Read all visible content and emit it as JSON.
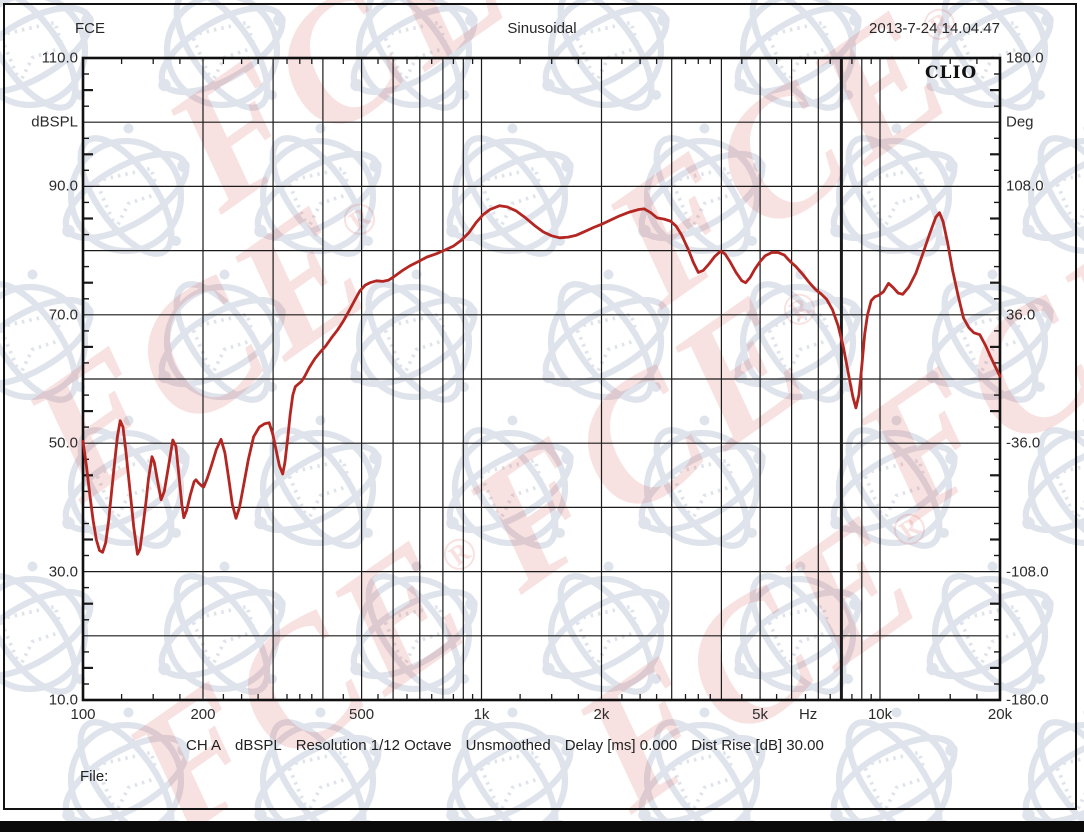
{
  "header": {
    "left": "FCE",
    "center": "Sinusoidal",
    "right": "2013-7-24 14.04.47"
  },
  "branding": {
    "plot_logo": "CLIO",
    "watermark_text": "FCE",
    "watermark_reg": "®"
  },
  "axes": {
    "y_left": {
      "unit": "dBSPL",
      "unit_value": 100,
      "min": 10,
      "max": 110,
      "grid_step": 10,
      "labels": [
        {
          "v": 110,
          "label": "110.0"
        },
        {
          "v": 90,
          "label": "90.0"
        },
        {
          "v": 70,
          "label": "70.0"
        },
        {
          "v": 50,
          "label": "50.0"
        },
        {
          "v": 30,
          "label": "30.0"
        },
        {
          "v": 10,
          "label": "10.0"
        }
      ]
    },
    "y_right": {
      "unit": "Deg",
      "unit_value": 144,
      "min": -180,
      "max": 180,
      "labels": [
        {
          "v": 180,
          "label": "180.0"
        },
        {
          "v": 108,
          "label": "108.0"
        },
        {
          "v": 36,
          "label": "36.0"
        },
        {
          "v": -36,
          "label": "-36.0"
        },
        {
          "v": -108,
          "label": "-108.0"
        },
        {
          "v": -180,
          "label": "-180.0"
        }
      ]
    },
    "x": {
      "unit": "Hz",
      "unit_freq": 6600,
      "min": 100,
      "max": 20000,
      "scale": "log",
      "labels": [
        {
          "f": 100,
          "label": "100"
        },
        {
          "f": 200,
          "label": "200"
        },
        {
          "f": 500,
          "label": "500"
        },
        {
          "f": 1000,
          "label": "1k"
        },
        {
          "f": 2000,
          "label": "2k"
        },
        {
          "f": 5000,
          "label": "5k"
        },
        {
          "f": 10000,
          "label": "10k"
        },
        {
          "f": 20000,
          "label": "20k"
        }
      ]
    }
  },
  "status_bar": {
    "items": [
      "CH A",
      "dBSPL",
      "Resolution 1/12 Octave",
      "Unsmoothed",
      "Delay [ms] 0.000",
      "Dist Rise [dB] 30.00"
    ]
  },
  "file_label": "File:",
  "colors": {
    "curve": "#b32622",
    "grid": "#1a1a1a",
    "watermark_red": "#ce3e34",
    "watermark_gray": "#dfe3eb"
  },
  "chart_data": {
    "type": "line",
    "title": "Sinusoidal",
    "xlabel": "Hz",
    "ylabel": "dBSPL",
    "y2label": "Deg",
    "xlim": [
      100,
      20000
    ],
    "ylim": [
      10,
      110
    ],
    "y2lim": [
      -180,
      180
    ],
    "x_scale": "log",
    "grid": true,
    "legend": "none",
    "series": [
      {
        "name": "CH A dBSPL",
        "color": "#b32622",
        "points": [
          [
            100,
            50.3
          ],
          [
            102,
            46.5
          ],
          [
            104,
            42
          ],
          [
            106,
            38
          ],
          [
            108,
            35
          ],
          [
            110,
            33.3
          ],
          [
            112,
            33.0
          ],
          [
            114,
            34.5
          ],
          [
            116,
            38
          ],
          [
            118,
            42.5
          ],
          [
            120,
            47
          ],
          [
            122,
            51
          ],
          [
            124,
            53.5
          ],
          [
            126,
            52.5
          ],
          [
            128,
            49
          ],
          [
            130,
            45
          ],
          [
            132,
            41
          ],
          [
            134,
            37
          ],
          [
            137,
            32.7
          ],
          [
            139,
            33.5
          ],
          [
            141,
            36.5
          ],
          [
            144,
            41
          ],
          [
            146,
            44.5
          ],
          [
            149,
            47.9
          ],
          [
            151,
            47
          ],
          [
            154,
            44
          ],
          [
            157,
            41.2
          ],
          [
            160,
            42.5
          ],
          [
            164,
            46.5
          ],
          [
            168,
            50.5
          ],
          [
            171,
            49.5
          ],
          [
            174,
            45
          ],
          [
            177,
            40.5
          ],
          [
            179,
            38.4
          ],
          [
            182,
            39.5
          ],
          [
            186,
            42
          ],
          [
            190,
            44
          ],
          [
            192,
            44.3
          ],
          [
            195,
            43.8
          ],
          [
            199,
            43.3
          ],
          [
            201,
            43.2
          ],
          [
            205,
            44.5
          ],
          [
            210,
            46.5
          ],
          [
            216,
            49
          ],
          [
            222,
            50.6
          ],
          [
            227,
            48.5
          ],
          [
            232,
            44.5
          ],
          [
            237,
            40.5
          ],
          [
            242,
            38.3
          ],
          [
            247,
            40
          ],
          [
            253,
            43.5
          ],
          [
            260,
            47.5
          ],
          [
            268,
            51
          ],
          [
            277,
            52.5
          ],
          [
            285,
            53.0
          ],
          [
            293,
            53.2
          ],
          [
            299,
            51.5
          ],
          [
            305,
            49
          ],
          [
            311,
            46.5
          ],
          [
            317,
            45.2
          ],
          [
            321,
            47
          ],
          [
            326,
            50.5
          ],
          [
            331,
            54.5
          ],
          [
            336,
            57.5
          ],
          [
            341,
            58.8
          ],
          [
            347,
            59.2
          ],
          [
            353,
            59.6
          ],
          [
            360,
            60.4
          ],
          [
            370,
            61.8
          ],
          [
            382,
            63.2
          ],
          [
            394,
            64.2
          ],
          [
            406,
            65.1
          ],
          [
            420,
            66.4
          ],
          [
            435,
            67.6
          ],
          [
            450,
            69
          ],
          [
            465,
            70.6
          ],
          [
            480,
            72.2
          ],
          [
            495,
            73.7
          ],
          [
            510,
            74.6
          ],
          [
            525,
            75.0
          ],
          [
            545,
            75.3
          ],
          [
            565,
            75.2
          ],
          [
            585,
            75.4
          ],
          [
            605,
            76.0
          ],
          [
            630,
            76.8
          ],
          [
            660,
            77.6
          ],
          [
            695,
            78.3
          ],
          [
            730,
            79.0
          ],
          [
            770,
            79.5
          ],
          [
            810,
            80.1
          ],
          [
            850,
            80.7
          ],
          [
            890,
            81.6
          ],
          [
            930,
            82.8
          ],
          [
            970,
            84.4
          ],
          [
            1010,
            85.6
          ],
          [
            1050,
            86.4
          ],
          [
            1110,
            87.0
          ],
          [
            1160,
            86.8
          ],
          [
            1220,
            86.2
          ],
          [
            1290,
            85.1
          ],
          [
            1360,
            83.9
          ],
          [
            1430,
            82.9
          ],
          [
            1500,
            82.3
          ],
          [
            1570,
            82.0
          ],
          [
            1650,
            82.1
          ],
          [
            1730,
            82.4
          ],
          [
            1820,
            83.0
          ],
          [
            1910,
            83.6
          ],
          [
            2000,
            84.1
          ],
          [
            2100,
            84.7
          ],
          [
            2220,
            85.4
          ],
          [
            2350,
            86.0
          ],
          [
            2480,
            86.4
          ],
          [
            2560,
            86.5
          ],
          [
            2660,
            85.9
          ],
          [
            2760,
            85.1
          ],
          [
            2870,
            84.9
          ],
          [
            2980,
            84.6
          ],
          [
            3080,
            83.8
          ],
          [
            3180,
            82.4
          ],
          [
            3300,
            80.2
          ],
          [
            3400,
            78.2
          ],
          [
            3500,
            76.6
          ],
          [
            3600,
            76.9
          ],
          [
            3720,
            77.9
          ],
          [
            3850,
            79.1
          ],
          [
            3980,
            79.9
          ],
          [
            4080,
            79.5
          ],
          [
            4200,
            78.3
          ],
          [
            4350,
            76.6
          ],
          [
            4500,
            75.3
          ],
          [
            4600,
            75.0
          ],
          [
            4720,
            75.8
          ],
          [
            4850,
            77.1
          ],
          [
            5000,
            78.3
          ],
          [
            5150,
            79.2
          ],
          [
            5350,
            79.7
          ],
          [
            5550,
            79.7
          ],
          [
            5750,
            79.3
          ],
          [
            5950,
            78.3
          ],
          [
            6150,
            77.5
          ],
          [
            6400,
            76.3
          ],
          [
            6650,
            75.0
          ],
          [
            6900,
            73.9
          ],
          [
            7100,
            73.3
          ],
          [
            7350,
            72.4
          ],
          [
            7600,
            70.8
          ],
          [
            7850,
            68.3
          ],
          [
            8100,
            64.8
          ],
          [
            8350,
            60.5
          ],
          [
            8550,
            57.2
          ],
          [
            8700,
            55.5
          ],
          [
            8850,
            57.5
          ],
          [
            9000,
            62
          ],
          [
            9150,
            67
          ],
          [
            9300,
            70
          ],
          [
            9500,
            72.2
          ],
          [
            9700,
            72.8
          ],
          [
            9900,
            73.0
          ],
          [
            10200,
            73.6
          ],
          [
            10500,
            74.9
          ],
          [
            10800,
            74.2
          ],
          [
            11100,
            73.4
          ],
          [
            11400,
            73.2
          ],
          [
            11800,
            74.3
          ],
          [
            12300,
            76.5
          ],
          [
            12800,
            79.5
          ],
          [
            13300,
            82.5
          ],
          [
            13800,
            85.2
          ],
          [
            14100,
            85.9
          ],
          [
            14400,
            84.5
          ],
          [
            14800,
            81
          ],
          [
            15200,
            77
          ],
          [
            15700,
            73
          ],
          [
            16200,
            69.5
          ],
          [
            16700,
            68.0
          ],
          [
            17200,
            67.2
          ],
          [
            17800,
            66.9
          ],
          [
            18400,
            65.2
          ],
          [
            19000,
            63.3
          ],
          [
            19500,
            61.8
          ],
          [
            20000,
            60.4
          ]
        ]
      }
    ]
  }
}
